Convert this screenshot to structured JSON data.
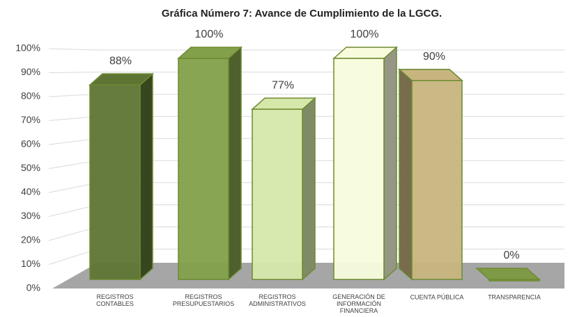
{
  "chart_data": {
    "type": "bar3d",
    "title": "Gráfica Número 7: Avance de Cumplimiento de la LGCG.",
    "categories": [
      "REGISTROS CONTABLES",
      "REGISTROS PRESUPUESTARIOS",
      "REGISTROS ADMINISTRATIVOS",
      "GENERACIÓN DE INFORMACIÓN FINANCIERA",
      "CUENTA PÚBLICA",
      "TRANSPARENCIA"
    ],
    "values": [
      88,
      100,
      77,
      100,
      90,
      0
    ],
    "value_labels": [
      "88%",
      "100%",
      "77%",
      "100%",
      "90%",
      "0%"
    ],
    "colors": [
      "#5e7434",
      "#82a04a",
      "#d5e8aa",
      "#f8fcdc",
      "#c7b47e",
      "#7e9a46"
    ],
    "ylim": [
      0,
      100
    ],
    "yticks": [
      {
        "value": 0,
        "label": "0%"
      },
      {
        "value": 10,
        "label": "10%"
      },
      {
        "value": 20,
        "label": "20%"
      },
      {
        "value": 30,
        "label": "30%"
      },
      {
        "value": 40,
        "label": "40%"
      },
      {
        "value": 50,
        "label": "50%"
      },
      {
        "value": 60,
        "label": "60%"
      },
      {
        "value": 70,
        "label": "70%"
      },
      {
        "value": 80,
        "label": "80%"
      },
      {
        "value": 90,
        "label": "90%"
      },
      {
        "value": 100,
        "label": "100%"
      }
    ],
    "grid": true
  }
}
